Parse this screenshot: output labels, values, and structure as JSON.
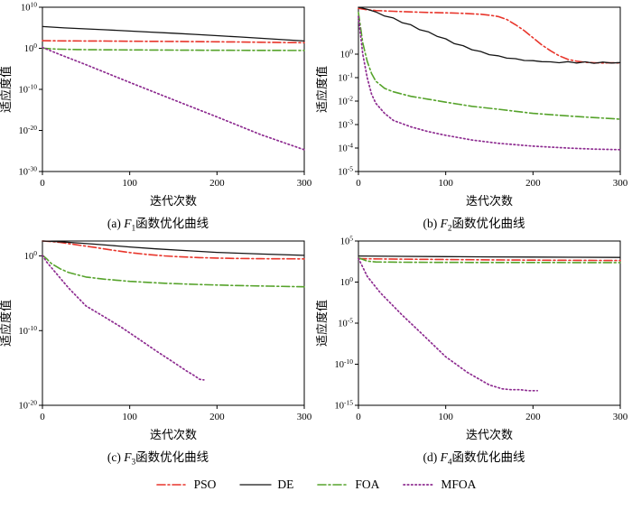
{
  "legend": {
    "items": [
      {
        "label": "PSO",
        "color": "#e8352b",
        "dash": "9 3 2 3",
        "width": 1.6
      },
      {
        "label": "DE",
        "color": "#141414",
        "dash": "solid",
        "width": 1.3
      },
      {
        "label": "FOA",
        "color": "#56a32b",
        "dash": "9 3 2 3",
        "width": 1.6
      },
      {
        "label": "MFOA",
        "color": "#8e2d91",
        "dash": "1.5 2.8",
        "width": 1.7
      }
    ]
  },
  "chart_data": [
    {
      "type": "line",
      "yscale": "log",
      "caption": {
        "prefix": "(a) ",
        "func": "F",
        "sub": "1",
        "suffix": "函数优化曲线"
      },
      "xlabel": "迭代次数",
      "ylabel": "适应度值",
      "xlim": [
        0,
        300
      ],
      "xticks": [
        0,
        100,
        200,
        300
      ],
      "ylim_exp": [
        -30,
        10
      ],
      "ytick_exps": [
        10,
        0,
        -10,
        -20,
        -30
      ],
      "series": [
        {
          "name": "PSO",
          "x": [
            0,
            25,
            50,
            75,
            100,
            125,
            150,
            175,
            200,
            225,
            250,
            275,
            300
          ],
          "y": [
            70,
            64,
            60,
            56,
            53,
            50,
            46,
            42,
            38,
            34,
            30,
            26,
            23
          ]
        },
        {
          "name": "DE",
          "x": [
            0,
            25,
            50,
            75,
            100,
            125,
            150,
            175,
            200,
            225,
            250,
            275,
            300
          ],
          "y": [
            200000,
            95000,
            52000,
            30000,
            16000,
            8500,
            4600,
            2400,
            1200,
            580,
            280,
            130,
            60
          ]
        },
        {
          "name": "FOA",
          "x": [
            0,
            10,
            20,
            40,
            60,
            100,
            150,
            200,
            250,
            300
          ],
          "y": [
            1.1,
            0.75,
            0.6,
            0.5,
            0.45,
            0.4,
            0.36,
            0.33,
            0.31,
            0.3
          ]
        },
        {
          "name": "MFOA",
          "x": [
            0,
            20,
            50,
            100,
            150,
            200,
            250,
            300
          ],
          "y": [
            1.6,
            0.03,
            0.0001,
            5e-09,
            3e-13,
            2e-17,
            1e-21,
            2e-25
          ]
        }
      ]
    },
    {
      "type": "line",
      "yscale": "log",
      "caption": {
        "prefix": "(b) ",
        "func": "F",
        "sub": "2",
        "suffix": "函数优化曲线"
      },
      "xlabel": "迭代次数",
      "ylabel": "适应度值",
      "xlim": [
        0,
        300
      ],
      "xticks": [
        0,
        100,
        200,
        300
      ],
      "ylim_exp": [
        -5,
        2
      ],
      "ytick_exps": [
        0,
        -1,
        -2,
        -3,
        -4,
        -5
      ],
      "series": [
        {
          "name": "PSO",
          "x": [
            0,
            10,
            20,
            40,
            60,
            80,
            100,
            120,
            140,
            150,
            160,
            170,
            180,
            190,
            200,
            210,
            220,
            230,
            240,
            250,
            260,
            270,
            280,
            290,
            300
          ],
          "y": [
            90,
            78,
            72,
            67,
            63,
            60,
            58,
            55,
            50,
            46,
            40,
            30,
            18,
            10,
            5,
            2.5,
            1.4,
            0.85,
            0.6,
            0.5,
            0.45,
            0.43,
            0.42,
            0.43,
            0.42
          ]
        },
        {
          "name": "DE",
          "x": [
            0,
            10,
            20,
            30,
            40,
            50,
            60,
            70,
            80,
            90,
            100,
            110,
            120,
            130,
            140,
            150,
            160,
            170,
            180,
            190,
            200,
            210,
            220,
            230,
            240,
            250,
            260,
            270,
            280,
            290,
            300
          ],
          "y": [
            100,
            82,
            63,
            42,
            35,
            22,
            18,
            11,
            9,
            5.8,
            4.5,
            2.8,
            2.3,
            1.55,
            1.3,
            0.95,
            0.85,
            0.68,
            0.64,
            0.54,
            0.53,
            0.48,
            0.47,
            0.43,
            0.48,
            0.42,
            0.47,
            0.41,
            0.46,
            0.42,
            0.44
          ]
        },
        {
          "name": "FOA",
          "x": [
            0,
            5,
            10,
            15,
            20,
            30,
            40,
            60,
            80,
            100,
            130,
            160,
            200,
            250,
            300
          ],
          "y": [
            60,
            3,
            0.5,
            0.15,
            0.07,
            0.035,
            0.025,
            0.016,
            0.012,
            0.009,
            0.006,
            0.0045,
            0.003,
            0.0022,
            0.0017
          ]
        },
        {
          "name": "MFOA",
          "x": [
            0,
            5,
            10,
            15,
            20,
            30,
            40,
            60,
            80,
            100,
            130,
            160,
            200,
            240,
            270,
            300
          ],
          "y": [
            40,
            1,
            0.1,
            0.02,
            0.008,
            0.003,
            0.0015,
            0.0008,
            0.0005,
            0.00035,
            0.00022,
            0.00016,
            0.00012,
            0.0001,
            9e-05,
            8.5e-05
          ]
        }
      ]
    },
    {
      "type": "line",
      "yscale": "log",
      "caption": {
        "prefix": "(c) ",
        "func": "F",
        "sub": "3",
        "suffix": "函数优化曲线"
      },
      "xlabel": "迭代次数",
      "ylabel": "适应度值",
      "xlim": [
        0,
        300
      ],
      "xticks": [
        0,
        100,
        200,
        300
      ],
      "ylim_exp": [
        -20,
        2
      ],
      "ytick_exps": [
        0,
        -10,
        -20
      ],
      "series": [
        {
          "name": "PSO",
          "x": [
            0,
            10,
            20,
            30,
            40,
            60,
            80,
            100,
            120,
            140,
            160,
            180,
            200,
            220,
            250,
            275,
            300
          ],
          "y": [
            100,
            85,
            65,
            45,
            30,
            14,
            6,
            2.8,
            1.6,
            1.0,
            0.75,
            0.6,
            0.52,
            0.47,
            0.43,
            0.41,
            0.4
          ]
        },
        {
          "name": "DE",
          "x": [
            0,
            20,
            40,
            60,
            80,
            100,
            130,
            160,
            200,
            250,
            300
          ],
          "y": [
            100,
            80,
            55,
            38,
            25,
            16,
            9,
            5.5,
            3.0,
            1.8,
            1.2
          ]
        },
        {
          "name": "FOA",
          "x": [
            0,
            5,
            10,
            20,
            30,
            50,
            70,
            100,
            140,
            180,
            220,
            260,
            300
          ],
          "y": [
            1.3,
            0.4,
            0.1,
            0.02,
            0.006,
            0.0015,
            0.0008,
            0.0004,
            0.00022,
            0.00015,
            0.00011,
            9e-05,
            7.5e-05
          ]
        },
        {
          "name": "MFOA",
          "x": [
            0,
            5,
            15,
            30,
            50,
            70,
            90,
            110,
            130,
            150,
            165,
            175,
            180,
            185
          ],
          "y": [
            1.2,
            0.15,
            0.006,
            5e-05,
            2e-07,
            8e-09,
            3e-10,
            8e-12,
            2e-13,
            6e-15,
            4e-16,
            8e-17,
            3e-17,
            2.5e-17
          ]
        }
      ]
    },
    {
      "type": "line",
      "yscale": "log",
      "caption": {
        "prefix": "(d) ",
        "func": "F",
        "sub": "4",
        "suffix": "函数优化曲线"
      },
      "xlabel": "迭代次数",
      "ylabel": "适应度值",
      "xlim": [
        0,
        300
      ],
      "xticks": [
        0,
        100,
        200,
        300
      ],
      "ylim_exp": [
        -15,
        5
      ],
      "ytick_exps": [
        5,
        0,
        -5,
        -10,
        -15
      ],
      "series": [
        {
          "name": "PSO",
          "x": [
            0,
            50,
            100,
            150,
            200,
            250,
            300
          ],
          "y": [
            700,
            620,
            560,
            510,
            470,
            440,
            420
          ]
        },
        {
          "name": "DE",
          "x": [
            0,
            50,
            100,
            150,
            200,
            250,
            300
          ],
          "y": [
            1500,
            1350,
            1250,
            1150,
            1100,
            1050,
            1000
          ]
        },
        {
          "name": "FOA",
          "x": [
            0,
            10,
            20,
            50,
            100,
            150,
            200,
            250,
            300
          ],
          "y": [
            900,
            350,
            280,
            260,
            250,
            245,
            240,
            238,
            235
          ]
        },
        {
          "name": "MFOA",
          "x": [
            0,
            10,
            25,
            50,
            75,
            100,
            125,
            150,
            165,
            175,
            185,
            195,
            205
          ],
          "y": [
            800,
            5,
            0.05,
            0.0001,
            3e-07,
            8e-10,
            1e-11,
            3e-13,
            1e-13,
            8e-14,
            8e-14,
            6e-14,
            6e-14
          ]
        }
      ]
    }
  ]
}
